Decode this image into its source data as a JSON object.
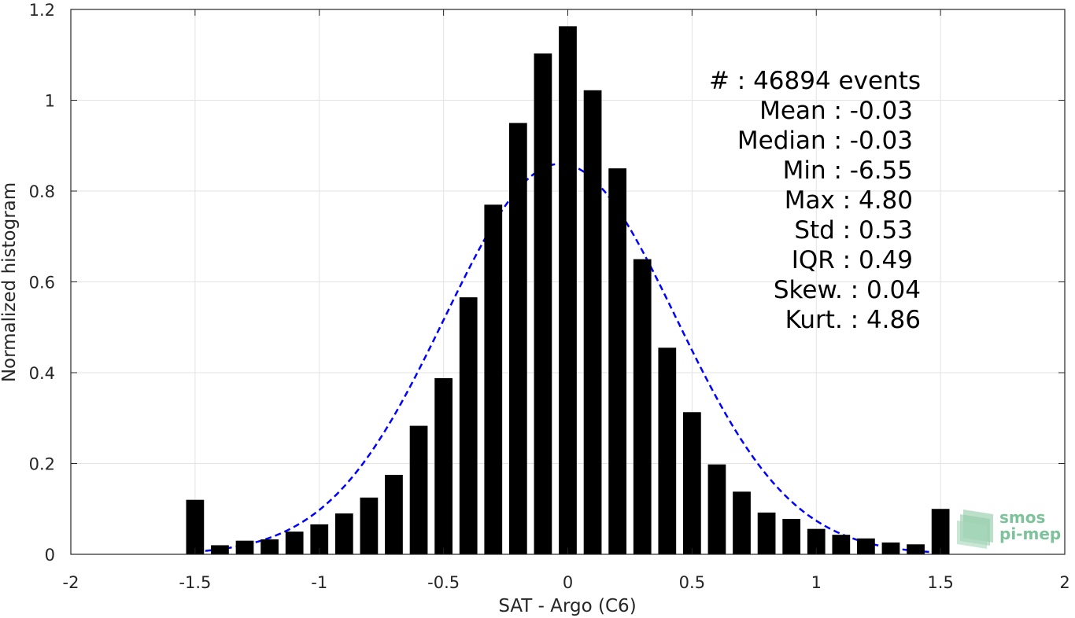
{
  "chart_data": {
    "type": "bar",
    "xlabel": "SAT - Argo (C6)",
    "ylabel": "Normalized histogram",
    "xlim": [
      -2,
      2
    ],
    "ylim": [
      0,
      1.2
    ],
    "grid": true,
    "x_ticks": [
      "-2",
      "-1.5",
      "-1",
      "-0.5",
      "0",
      "0.5",
      "1",
      "1.5",
      "2"
    ],
    "y_ticks": [
      "0",
      "0.2",
      "0.4",
      "0.6",
      "0.8",
      "1",
      "1.2"
    ],
    "bar_color": "#000000",
    "curve_color": "#0000ff",
    "x": [
      -1.5,
      -1.4,
      -1.3,
      -1.2,
      -1.1,
      -1.0,
      -0.9,
      -0.8,
      -0.7,
      -0.6,
      -0.5,
      -0.4,
      -0.3,
      -0.2,
      -0.1,
      0.0,
      0.1,
      0.2,
      0.3,
      0.4,
      0.5,
      0.6,
      0.7,
      0.8,
      0.9,
      1.0,
      1.1,
      1.2,
      1.3,
      1.4,
      1.5
    ],
    "values": [
      0.12,
      0.02,
      0.03,
      0.033,
      0.05,
      0.066,
      0.09,
      0.125,
      0.175,
      0.283,
      0.388,
      0.566,
      0.77,
      0.95,
      1.103,
      1.163,
      1.022,
      0.85,
      0.65,
      0.455,
      0.313,
      0.198,
      0.138,
      0.092,
      0.078,
      0.056,
      0.043,
      0.035,
      0.026,
      0.022,
      0.1
    ],
    "gaussian_fit": {
      "mean": -0.03,
      "std": 0.465,
      "peak": 0.86,
      "xrange": [
        -1.5,
        1.5
      ]
    },
    "annotations": [
      "#  : 46894 events",
      "Mean : -0.03",
      "Median : -0.03",
      "Min : -6.55",
      "Max : 4.80",
      "Std : 0.53",
      "IQR : 0.49",
      "Skew. : 0.04",
      "Kurt. : 4.86"
    ]
  },
  "logo": {
    "line1": "smos",
    "line2": "pi-mep",
    "color": "#7dc29a"
  }
}
